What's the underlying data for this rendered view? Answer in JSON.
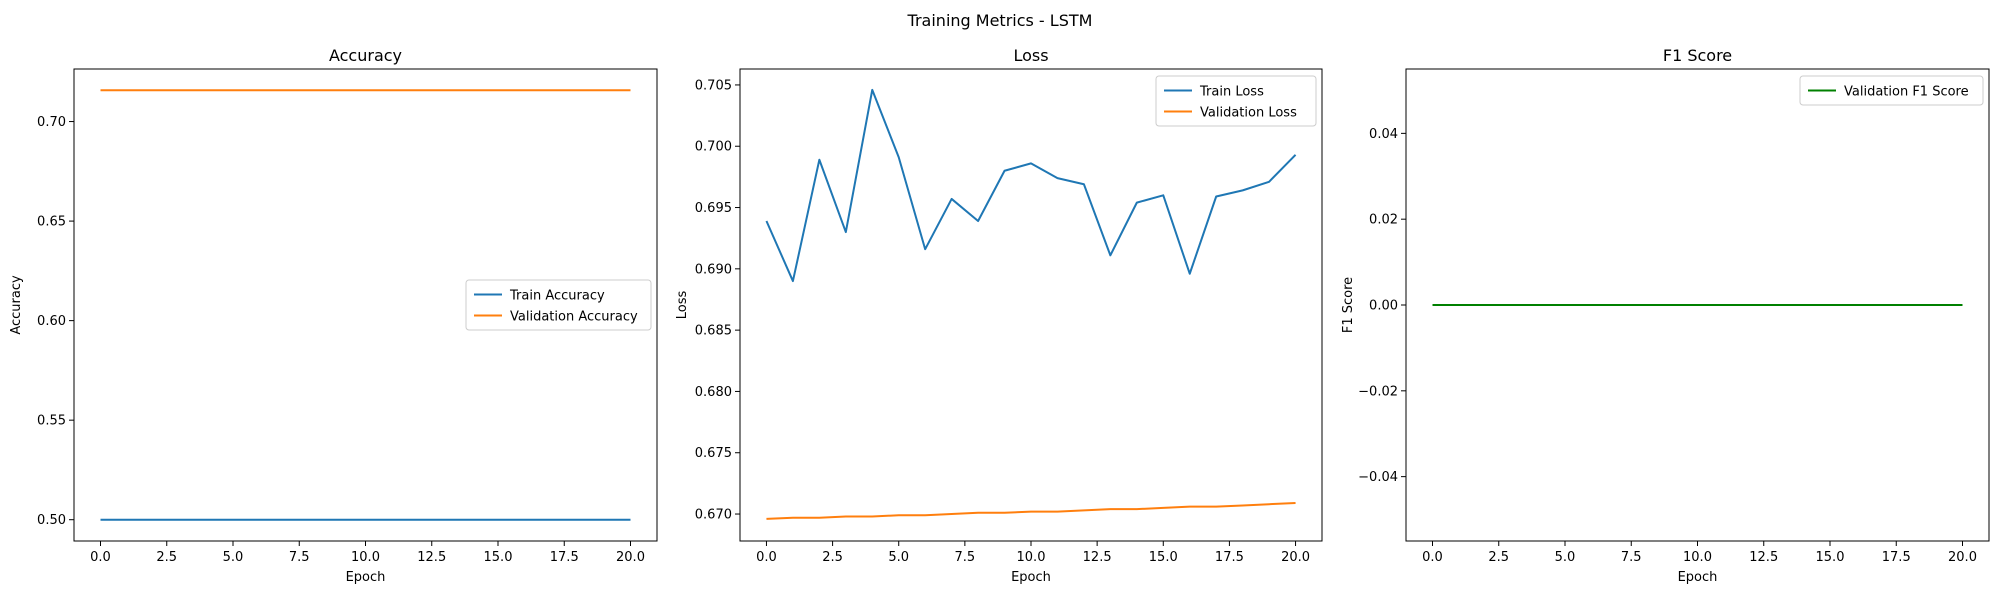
{
  "figure": {
    "title": "Training Metrics - LSTM"
  },
  "chart_data": [
    {
      "type": "line",
      "title": "Accuracy",
      "xlabel": "Epoch",
      "ylabel": "Accuracy",
      "xlim": [
        -1,
        21
      ],
      "ylim": [
        0.4893,
        0.7264
      ],
      "xticks": [
        0,
        2.5,
        5,
        7.5,
        10,
        12.5,
        15,
        17.5,
        20
      ],
      "xtick_labels": [
        "0.0",
        "2.5",
        "5.0",
        "7.5",
        "10.0",
        "12.5",
        "15.0",
        "17.5",
        "20.0"
      ],
      "yticks": [
        0.5,
        0.55,
        0.6,
        0.65,
        0.7
      ],
      "ytick_labels": [
        "0.50",
        "0.55",
        "0.60",
        "0.65",
        "0.70"
      ],
      "grid": false,
      "legend_position": "center-right",
      "x": [
        0,
        1,
        2,
        3,
        4,
        5,
        6,
        7,
        8,
        9,
        10,
        11,
        12,
        13,
        14,
        15,
        16,
        17,
        18,
        19,
        20
      ],
      "series": [
        {
          "name": "Train Accuracy",
          "color": "#1f77b4",
          "values": [
            0.5,
            0.5,
            0.5,
            0.5,
            0.5,
            0.5,
            0.5,
            0.5,
            0.5,
            0.5,
            0.5,
            0.5,
            0.5,
            0.5,
            0.5,
            0.5,
            0.5,
            0.5,
            0.5,
            0.5,
            0.5
          ]
        },
        {
          "name": "Validation Accuracy",
          "color": "#ff7f0e",
          "values": [
            0.7157,
            0.7157,
            0.7157,
            0.7157,
            0.7157,
            0.7157,
            0.7157,
            0.7157,
            0.7157,
            0.7157,
            0.7157,
            0.7157,
            0.7157,
            0.7157,
            0.7157,
            0.7157,
            0.7157,
            0.7157,
            0.7157,
            0.7157,
            0.7157
          ]
        }
      ]
    },
    {
      "type": "line",
      "title": "Loss",
      "xlabel": "Epoch",
      "ylabel": "Loss",
      "xlim": [
        -1,
        21
      ],
      "ylim": [
        0.6678,
        0.7063
      ],
      "xticks": [
        0,
        2.5,
        5,
        7.5,
        10,
        12.5,
        15,
        17.5,
        20
      ],
      "xtick_labels": [
        "0.0",
        "2.5",
        "5.0",
        "7.5",
        "10.0",
        "12.5",
        "15.0",
        "17.5",
        "20.0"
      ],
      "yticks": [
        0.67,
        0.675,
        0.68,
        0.685,
        0.69,
        0.695,
        0.7,
        0.705
      ],
      "ytick_labels": [
        "0.670",
        "0.675",
        "0.680",
        "0.685",
        "0.690",
        "0.695",
        "0.700",
        "0.705"
      ],
      "grid": false,
      "legend_position": "top-right",
      "x": [
        0,
        1,
        2,
        3,
        4,
        5,
        6,
        7,
        8,
        9,
        10,
        11,
        12,
        13,
        14,
        15,
        16,
        17,
        18,
        19,
        20
      ],
      "series": [
        {
          "name": "Train Loss",
          "color": "#1f77b4",
          "values": [
            0.6939,
            0.689,
            0.6989,
            0.693,
            0.7046,
            0.6991,
            0.6916,
            0.6957,
            0.6939,
            0.698,
            0.6986,
            0.6974,
            0.6969,
            0.6911,
            0.6954,
            0.696,
            0.6896,
            0.6959,
            0.6964,
            0.6971,
            0.6993
          ]
        },
        {
          "name": "Validation Loss",
          "color": "#ff7f0e",
          "values": [
            0.6696,
            0.6697,
            0.6697,
            0.6698,
            0.6698,
            0.6699,
            0.6699,
            0.67,
            0.6701,
            0.6701,
            0.6702,
            0.6702,
            0.6703,
            0.6704,
            0.6704,
            0.6705,
            0.6706,
            0.6706,
            0.6707,
            0.6708,
            0.6709
          ]
        }
      ]
    },
    {
      "type": "line",
      "title": "F1 Score",
      "xlabel": "Epoch",
      "ylabel": "F1 Score",
      "xlim": [
        -1,
        21
      ],
      "ylim": [
        -0.055,
        0.055
      ],
      "xticks": [
        0,
        2.5,
        5,
        7.5,
        10,
        12.5,
        15,
        17.5,
        20
      ],
      "xtick_labels": [
        "0.0",
        "2.5",
        "5.0",
        "7.5",
        "10.0",
        "12.5",
        "15.0",
        "17.5",
        "20.0"
      ],
      "yticks": [
        -0.04,
        -0.02,
        0.0,
        0.02,
        0.04
      ],
      "ytick_labels": [
        "−0.04",
        "−0.02",
        "0.00",
        "0.02",
        "0.04"
      ],
      "grid": false,
      "legend_position": "top-right",
      "x": [
        0,
        1,
        2,
        3,
        4,
        5,
        6,
        7,
        8,
        9,
        10,
        11,
        12,
        13,
        14,
        15,
        16,
        17,
        18,
        19,
        20
      ],
      "series": [
        {
          "name": "Validation F1 Score",
          "color": "#008000",
          "values": [
            0,
            0,
            0,
            0,
            0,
            0,
            0,
            0,
            0,
            0,
            0,
            0,
            0,
            0,
            0,
            0,
            0,
            0,
            0,
            0,
            0
          ]
        }
      ]
    }
  ]
}
